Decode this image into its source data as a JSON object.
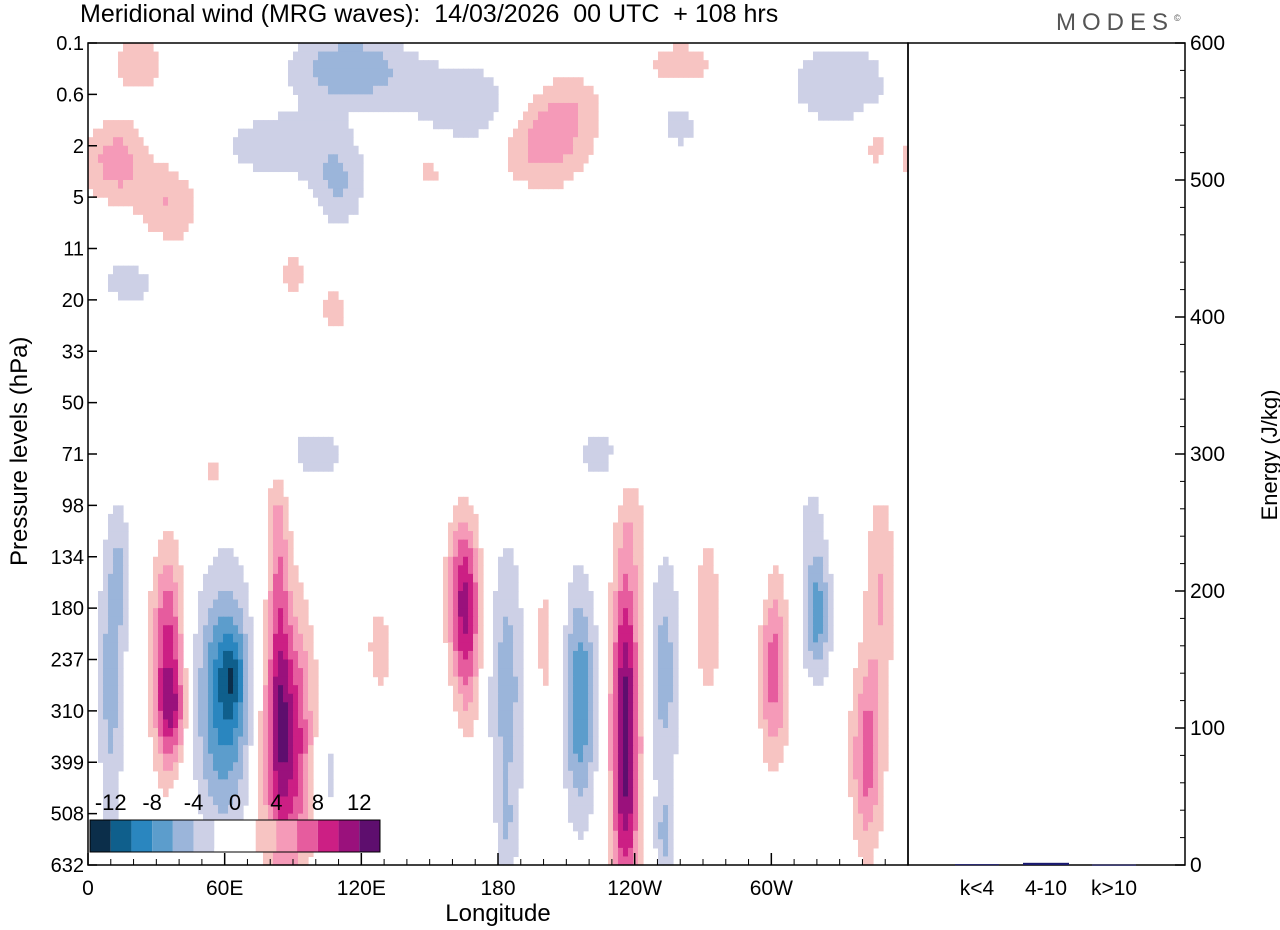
{
  "header": {
    "title": "Meridional wind (MRG waves):  14/03/2026  00 UTC  + 108 hrs",
    "brand": "MODES",
    "brand_mark": "©"
  },
  "colors": {
    "neg": [
      "#0b2e4a",
      "#0f5f8c",
      "#2a86bf",
      "#5c9dcc",
      "#9bb5da",
      "#cdd0e6"
    ],
    "pos": [
      "#f7c4c2",
      "#f59ab8",
      "#e65c9e",
      "#cc1f84",
      "#9a117c",
      "#5e0e6e"
    ],
    "axis": "#000000",
    "bar": "#1a1a6e"
  },
  "chart_data": [
    {
      "type": "heatmap",
      "title": "Meridional wind (MRG waves):  14/03/2026  00 UTC  + 108 hrs",
      "xlabel": "Longitude",
      "ylabel": "Pressure levels (hPa)",
      "x_ticks": [
        "0",
        "60E",
        "120E",
        "180",
        "120W",
        "60W"
      ],
      "x_tick_lon": [
        0,
        60,
        120,
        180,
        240,
        300
      ],
      "xlim": [
        0,
        360
      ],
      "y_ticks": [
        "0.1",
        "0.6",
        "2",
        "5",
        "11",
        "20",
        "33",
        "50",
        "71",
        "98",
        "134",
        "180",
        "237",
        "310",
        "399",
        "508",
        "632"
      ],
      "colorbar": {
        "labels": [
          "-12",
          "-8",
          "-4",
          "0",
          "4",
          "8",
          "12"
        ],
        "levels": [
          -14,
          -12,
          -10,
          -8,
          -6,
          -4,
          -2,
          2,
          4,
          6,
          8,
          10,
          12,
          14
        ]
      },
      "features": [
        {
          "lon": 10,
          "lev": 12.4,
          "dlon": 4,
          "dlev": 2.2,
          "amp": -5
        },
        {
          "lon": 15,
          "lev": 10.3,
          "dlon": 3,
          "dlev": 0.9,
          "amp": -3
        },
        {
          "lon": 35,
          "lev": 12.0,
          "dlon": 5,
          "dlev": 1.5,
          "amp": 9
        },
        {
          "lon": 37,
          "lev": 13.0,
          "dlon": 4,
          "dlev": 0.6,
          "amp": 5
        },
        {
          "lon": 60,
          "lev": 12.8,
          "dlon": 9,
          "dlev": 1.7,
          "amp": -9
        },
        {
          "lon": 63,
          "lev": 12.3,
          "dlon": 4,
          "dlev": 0.6,
          "amp": -4
        },
        {
          "lon": 87,
          "lev": 13.6,
          "dlon": 8,
          "dlev": 1.8,
          "amp": 11
        },
        {
          "lon": 84,
          "lev": 11.3,
          "dlon": 3,
          "dlev": 2.2,
          "amp": 4
        },
        {
          "lon": 82,
          "lev": 9.3,
          "dlon": 4,
          "dlev": 1.0,
          "amp": 2
        },
        {
          "lon": 105,
          "lev": 14.2,
          "dlon": 4,
          "dlev": 0.9,
          "amp": -3
        },
        {
          "lon": 128,
          "lev": 11.8,
          "dlon": 6,
          "dlev": 1.0,
          "amp": 2.5
        },
        {
          "lon": 165,
          "lev": 10.8,
          "dlon": 5,
          "dlev": 1.1,
          "amp": 10
        },
        {
          "lon": 167,
          "lev": 12.4,
          "dlon": 4,
          "dlev": 1.0,
          "amp": 3
        },
        {
          "lon": 184,
          "lev": 12.5,
          "dlon": 6,
          "dlev": 2.0,
          "amp": -5
        },
        {
          "lon": 184,
          "lev": 15.5,
          "dlon": 3,
          "dlev": 0.8,
          "amp": -2.5
        },
        {
          "lon": 200,
          "lev": 11.7,
          "dlon": 5,
          "dlev": 1.5,
          "amp": 2.5
        },
        {
          "lon": 216,
          "lev": 12.8,
          "dlon": 5,
          "dlev": 1.6,
          "amp": -8
        },
        {
          "lon": 236,
          "lev": 12.9,
          "dlon": 4.5,
          "dlev": 2.0,
          "amp": 12
        },
        {
          "lon": 236,
          "lev": 15.3,
          "dlon": 4,
          "dlev": 1.3,
          "amp": 4.5
        },
        {
          "lon": 240,
          "lev": 9.3,
          "dlon": 5,
          "dlev": 0.8,
          "amp": 2
        },
        {
          "lon": 253,
          "lev": 12.2,
          "dlon": 5,
          "dlev": 1.6,
          "amp": -5
        },
        {
          "lon": 253,
          "lev": 15.5,
          "dlon": 3,
          "dlev": 0.8,
          "amp": -4
        },
        {
          "lon": 272,
          "lev": 11.2,
          "dlon": 4,
          "dlev": 1.2,
          "amp": 4
        },
        {
          "lon": 285,
          "lev": 10.8,
          "dlon": 3,
          "dlev": 0.8,
          "amp": -2
        },
        {
          "lon": 301,
          "lev": 12.2,
          "dlon": 4.5,
          "dlev": 1.3,
          "amp": 7
        },
        {
          "lon": 320,
          "lev": 11.1,
          "dlon": 4.5,
          "dlev": 0.9,
          "amp": -7
        },
        {
          "lon": 317,
          "lev": 9.2,
          "dlon": 5,
          "dlev": 0.7,
          "amp": -2
        },
        {
          "lon": 342,
          "lev": 13.9,
          "dlon": 5,
          "dlev": 1.3,
          "amp": 7
        },
        {
          "lon": 348,
          "lev": 10.6,
          "dlon": 5,
          "dlev": 1.4,
          "amp": 4
        },
        {
          "lon": 295,
          "lev": 10.0,
          "dlon": 3,
          "dlev": 0.7,
          "amp": -2
        },
        {
          "lon": 22,
          "lev": 0.4,
          "dlon": 10,
          "dlev": 0.5,
          "amp": 3
        },
        {
          "lon": 115,
          "lev": 0.5,
          "dlon": 18,
          "dlev": 0.5,
          "amp": -6
        },
        {
          "lon": 165,
          "lev": 1.2,
          "dlon": 18,
          "dlev": 0.6,
          "amp": -4
        },
        {
          "lon": 210,
          "lev": 1.2,
          "dlon": 12,
          "dlev": 0.5,
          "amp": 3
        },
        {
          "lon": 200,
          "lev": 2.0,
          "dlon": 14,
          "dlev": 0.6,
          "amp": 5
        },
        {
          "lon": 260,
          "lev": 0.5,
          "dlon": 14,
          "dlev": 0.5,
          "amp": 3
        },
        {
          "lon": 330,
          "lev": 0.8,
          "dlon": 16,
          "dlev": 0.6,
          "amp": -4
        },
        {
          "lon": 12,
          "lev": 2.3,
          "dlon": 10,
          "dlev": 0.6,
          "amp": 5
        },
        {
          "lon": 35,
          "lev": 3.2,
          "dlon": 10,
          "dlev": 0.6,
          "amp": 4
        },
        {
          "lon": 85,
          "lev": 2.0,
          "dlon": 20,
          "dlev": 0.5,
          "amp": -3.5
        },
        {
          "lon": 110,
          "lev": 2.8,
          "dlon": 8,
          "dlev": 0.6,
          "amp": -4
        },
        {
          "lon": 150,
          "lev": 2.4,
          "dlon": 8,
          "dlev": 0.5,
          "amp": 2.5
        },
        {
          "lon": 18,
          "lev": 4.6,
          "dlon": 14,
          "dlev": 0.6,
          "amp": -2.5
        },
        {
          "lon": 90,
          "lev": 4.5,
          "dlon": 6,
          "dlev": 0.5,
          "amp": 2.5
        },
        {
          "lon": 108,
          "lev": 5.2,
          "dlon": 6,
          "dlev": 0.5,
          "amp": 2.5
        },
        {
          "lon": 260,
          "lev": 1.5,
          "dlon": 8,
          "dlev": 0.5,
          "amp": -3
        },
        {
          "lon": 345,
          "lev": 2.0,
          "dlon": 6,
          "dlev": 0.4,
          "amp": 2.5
        },
        {
          "lon": 100,
          "lev": 8.0,
          "dlon": 16,
          "dlev": 0.6,
          "amp": -2.5
        },
        {
          "lon": 55,
          "lev": 8.4,
          "dlon": 5,
          "dlev": 0.6,
          "amp": 2.5
        },
        {
          "lon": 225,
          "lev": 8.0,
          "dlon": 10,
          "dlev": 0.5,
          "amp": -2.5
        }
      ]
    },
    {
      "type": "bar",
      "categories": [
        "k<4",
        "4-10",
        "k>10"
      ],
      "values": [
        0.6,
        1.6,
        0.3
      ],
      "ylabel": "Energy (J/kg)",
      "ylim": [
        0,
        600
      ],
      "y_ticks": [
        "0",
        "100",
        "200",
        "300",
        "400",
        "500",
        "600"
      ],
      "y_tick_values": [
        0,
        100,
        200,
        300,
        400,
        500,
        600
      ]
    }
  ]
}
